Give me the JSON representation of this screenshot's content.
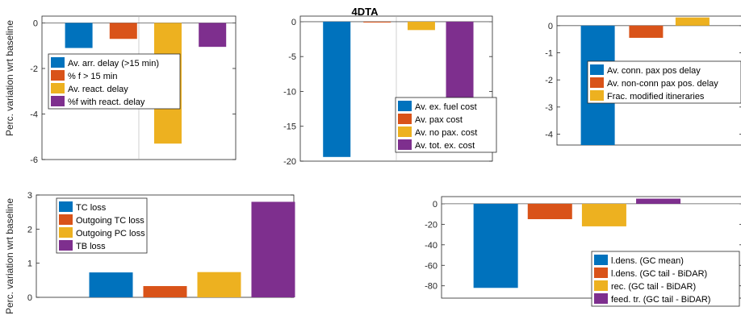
{
  "figure": {
    "title": "4DTA",
    "row_ylabels": [
      "Perc. variation wrt baseline",
      "Perc. variation wrt baseline"
    ]
  },
  "colors": {
    "blue": "#0072BD",
    "orange": "#D95319",
    "yellow": "#EDB120",
    "purple": "#7E2F8E",
    "axis": "#262626",
    "grid": "#b0b0b0"
  },
  "chart_data": [
    {
      "type": "bar",
      "title": "",
      "ylabel": "Perc. variation wrt baseline",
      "ylim": [
        -6,
        0.3
      ],
      "yticks": [
        0,
        -2,
        -4,
        -6
      ],
      "legend_position": "inside-left",
      "series": [
        {
          "name": "Av. arr. delay (>15 min)",
          "value": -1.1,
          "color": "blue"
        },
        {
          "name": "% f > 15 min",
          "value": -0.7,
          "color": "orange"
        },
        {
          "name": "Av. react. delay",
          "value": -5.3,
          "color": "yellow"
        },
        {
          "name": "%f with react. delay",
          "value": -1.05,
          "color": "purple"
        }
      ]
    },
    {
      "type": "bar",
      "title": "",
      "ylabel": "",
      "ylim": [
        -20,
        0.8
      ],
      "yticks": [
        0,
        -5,
        -10,
        -15,
        -20
      ],
      "legend_position": "inside-bottom-right",
      "series": [
        {
          "name": "Av. ex. fuel cost",
          "value": -19.4,
          "color": "blue"
        },
        {
          "name": "Av. pax cost",
          "value": -0.05,
          "color": "orange"
        },
        {
          "name": "Av. no pax. cost",
          "value": -1.2,
          "color": "yellow"
        },
        {
          "name": "Av. tot. ex. cost",
          "value": -11.3,
          "color": "purple"
        }
      ]
    },
    {
      "type": "bar",
      "title": "",
      "ylabel": "",
      "ylim": [
        -4.4,
        0.35
      ],
      "yticks": [
        0,
        -1,
        -2,
        -3,
        -4
      ],
      "legend_position": "inside-top-right",
      "series": [
        {
          "name": "Av. conn. pax pos delay",
          "value": -4.4,
          "color": "blue"
        },
        {
          "name": "Av. non-conn pax pos. delay",
          "value": -0.45,
          "color": "orange"
        },
        {
          "name": "Frac. modified itineraries",
          "value": 0.3,
          "color": "yellow"
        }
      ]
    },
    {
      "type": "bar",
      "title": "",
      "ylabel": "Perc. variation wrt baseline",
      "ylim": [
        0,
        3
      ],
      "yticks": [
        0,
        1,
        2,
        3
      ],
      "legend_position": "inside-top-left",
      "series": [
        {
          "name": "TC loss",
          "value": 0.73,
          "color": "blue"
        },
        {
          "name": "Outgoing TC loss",
          "value": 0.33,
          "color": "orange"
        },
        {
          "name": "Outgoing PC loss",
          "value": 0.74,
          "color": "yellow"
        },
        {
          "name": "TB loss",
          "value": 2.8,
          "color": "purple"
        }
      ]
    },
    {
      "type": "bar",
      "title": "",
      "ylabel": "",
      "ylim": [
        -92,
        7
      ],
      "yticks": [
        0,
        -20,
        -40,
        -60,
        -80
      ],
      "legend_position": "inside-bottom-right",
      "series": [
        {
          "name": "l.dens. (GC mean)",
          "value": -82,
          "color": "blue"
        },
        {
          "name": "l.dens. (GC tail - BiDAR)",
          "value": -15,
          "color": "orange"
        },
        {
          "name": "rec. (GC tail - BiDAR)",
          "value": -22,
          "color": "yellow"
        },
        {
          "name": "feed. tr. (GC tail - BiDAR)",
          "value": 5,
          "color": "purple"
        }
      ]
    }
  ]
}
